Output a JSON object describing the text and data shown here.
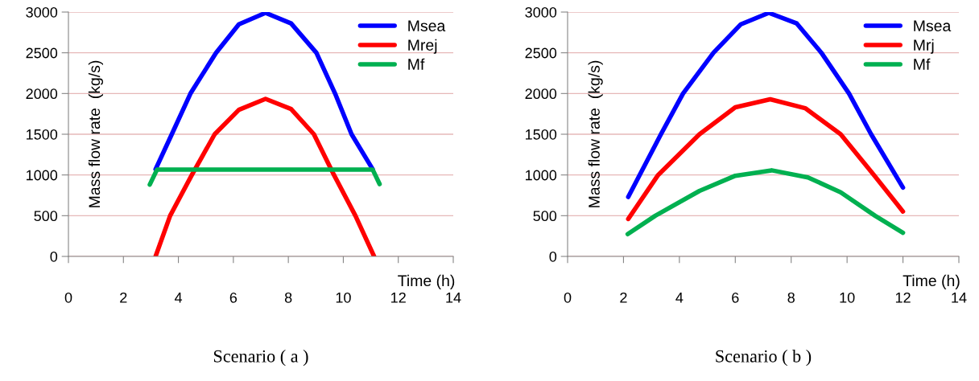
{
  "chart_data": [
    {
      "type": "line",
      "title": "Scenario ( a )",
      "xlabel": "Time (h)",
      "ylabel": "Mass flow rate  (kg/s)",
      "xlim": [
        0,
        14
      ],
      "xticks": [
        0,
        2,
        4,
        6,
        8,
        10,
        12,
        14
      ],
      "ylim": [
        0,
        3000
      ],
      "yticks": [
        0,
        500,
        1000,
        1500,
        2000,
        2500,
        3000
      ],
      "grid": "y",
      "legend": "top right",
      "series": [
        {
          "name": "Msea",
          "color": "#0000ff",
          "x": [
            3.17,
            3.76,
            4.44,
            5.37,
            6.2,
            7.17,
            8.1,
            9.02,
            9.7,
            10.3,
            11.07
          ],
          "values": [
            1070,
            1500,
            2000,
            2500,
            2850,
            2990,
            2860,
            2500,
            2000,
            1500,
            1070
          ]
        },
        {
          "name": "Mrej",
          "color": "#ff0000",
          "x": [
            3.17,
            3.7,
            4.49,
            5.32,
            6.2,
            7.17,
            8.1,
            8.93,
            9.66,
            10.44,
            11.12
          ],
          "values": [
            0,
            500,
            1000,
            1500,
            1800,
            1934,
            1810,
            1500,
            1000,
            500,
            0
          ]
        },
        {
          "name": "Mf",
          "color": "#00b050",
          "x": [
            2.96,
            3.22,
            11.07,
            11.32
          ],
          "values": [
            882,
            1065,
            1065,
            888
          ]
        }
      ]
    },
    {
      "type": "line",
      "title": "Scenario ( b )",
      "xlabel": "Time (h)",
      "ylabel": "Mass flow rate  (kg/s)",
      "xlim": [
        0,
        14
      ],
      "xticks": [
        0,
        2,
        4,
        6,
        8,
        10,
        12,
        14
      ],
      "ylim": [
        0,
        3000
      ],
      "yticks": [
        0,
        500,
        1000,
        1500,
        2000,
        2500,
        3000
      ],
      "grid": "y",
      "legend": "top right",
      "series": [
        {
          "name": "Msea",
          "color": "#0000ff",
          "x": [
            2.17,
            3.34,
            4.13,
            5.22,
            6.2,
            7.2,
            8.2,
            9.08,
            10.07,
            10.86,
            12.0
          ],
          "values": [
            730,
            1500,
            2000,
            2500,
            2850,
            2990,
            2860,
            2500,
            2000,
            1500,
            845
          ]
        },
        {
          "name": "Mrj",
          "color": "#ff0000",
          "x": [
            2.17,
            3.24,
            4.72,
            6.0,
            7.25,
            8.5,
            9.77,
            10.96,
            12.0
          ],
          "values": [
            460,
            1000,
            1500,
            1830,
            1929,
            1820,
            1500,
            1000,
            551
          ]
        },
        {
          "name": "Mf",
          "color": "#00b050",
          "x": [
            2.15,
            3.14,
            4.72,
            6.0,
            7.3,
            8.6,
            9.77,
            11.0,
            12.0
          ],
          "values": [
            274,
            500,
            804,
            990,
            1057,
            970,
            787,
            500,
            291
          ]
        }
      ]
    }
  ]
}
